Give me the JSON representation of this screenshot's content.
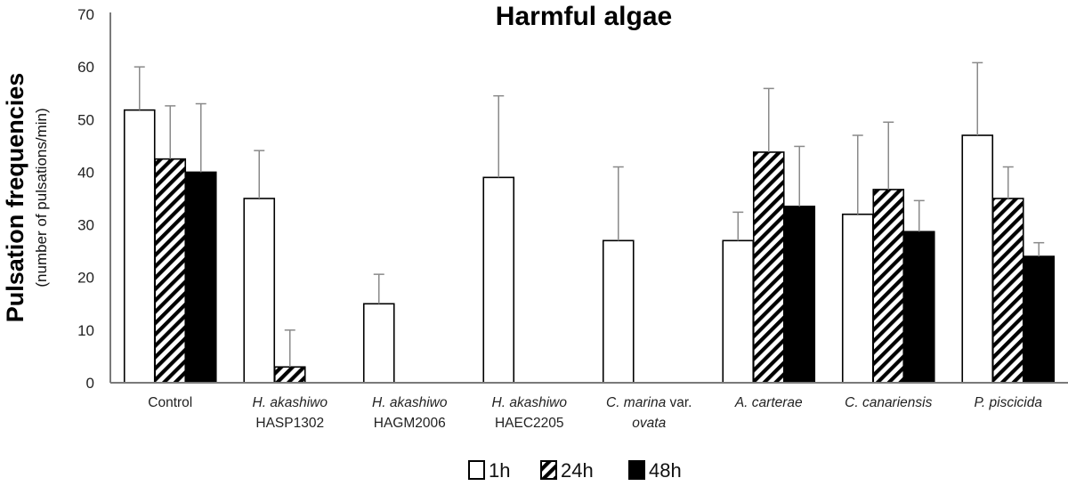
{
  "chart_data": {
    "type": "bar",
    "title": "Harmful algae",
    "ylabel": "Pulsation frequencies",
    "ylabel_sub": "(number of pulsations/min)",
    "xlabel": "",
    "ylim": [
      0,
      70
    ],
    "yticks": [
      0,
      10,
      20,
      30,
      40,
      50,
      60,
      70
    ],
    "grid": false,
    "legend_position": "bottom-center",
    "categories": [
      {
        "line1": "Control",
        "line1_italic": "",
        "line1_tail": "",
        "line2": "",
        "line2_italic": false
      },
      {
        "line1": "",
        "line1_italic": "H. akashiwo",
        "line1_tail": "",
        "line2": "HASP1302",
        "line2_italic": false
      },
      {
        "line1": "",
        "line1_italic": "H. akashiwo",
        "line1_tail": "",
        "line2": "HAGM2006",
        "line2_italic": false
      },
      {
        "line1": "",
        "line1_italic": "H. akashiwo",
        "line1_tail": "",
        "line2": "HAEC2205",
        "line2_italic": false
      },
      {
        "line1": "",
        "line1_italic": "C. marina",
        "line1_tail": " var.",
        "line2": "ovata",
        "line2_italic": true
      },
      {
        "line1": "",
        "line1_italic": "A. carterae",
        "line1_tail": "",
        "line2": "",
        "line2_italic": false
      },
      {
        "line1": "",
        "line1_italic": "C. canariensis",
        "line1_tail": "",
        "line2": "",
        "line2_italic": false
      },
      {
        "line1": "",
        "line1_italic": "P. piscicida",
        "line1_tail": "",
        "line2": "",
        "line2_italic": false
      }
    ],
    "series": [
      {
        "name": "1h",
        "style": "white",
        "values": [
          51.8,
          35,
          15,
          39,
          27,
          27,
          32,
          47
        ],
        "errors": [
          8.2,
          9.1,
          5.6,
          15.5,
          14,
          5.4,
          15,
          13.8
        ]
      },
      {
        "name": "24h",
        "style": "hatched",
        "values": [
          42.5,
          3,
          0,
          0,
          0,
          43.8,
          36.7,
          35
        ],
        "errors": [
          10.1,
          7,
          0,
          0,
          0,
          12.1,
          12.8,
          6
        ]
      },
      {
        "name": "48h",
        "style": "black",
        "values": [
          40,
          0,
          0,
          0,
          0,
          33.5,
          28.7,
          24
        ],
        "errors": [
          13,
          0,
          0,
          0,
          0,
          11.4,
          5.9,
          2.6
        ]
      }
    ],
    "colors": {
      "white": "#ffffff",
      "black": "#000000",
      "outline": "#000000",
      "error_bar": "#8a8a8a",
      "axis": "#7a7a7a"
    }
  }
}
